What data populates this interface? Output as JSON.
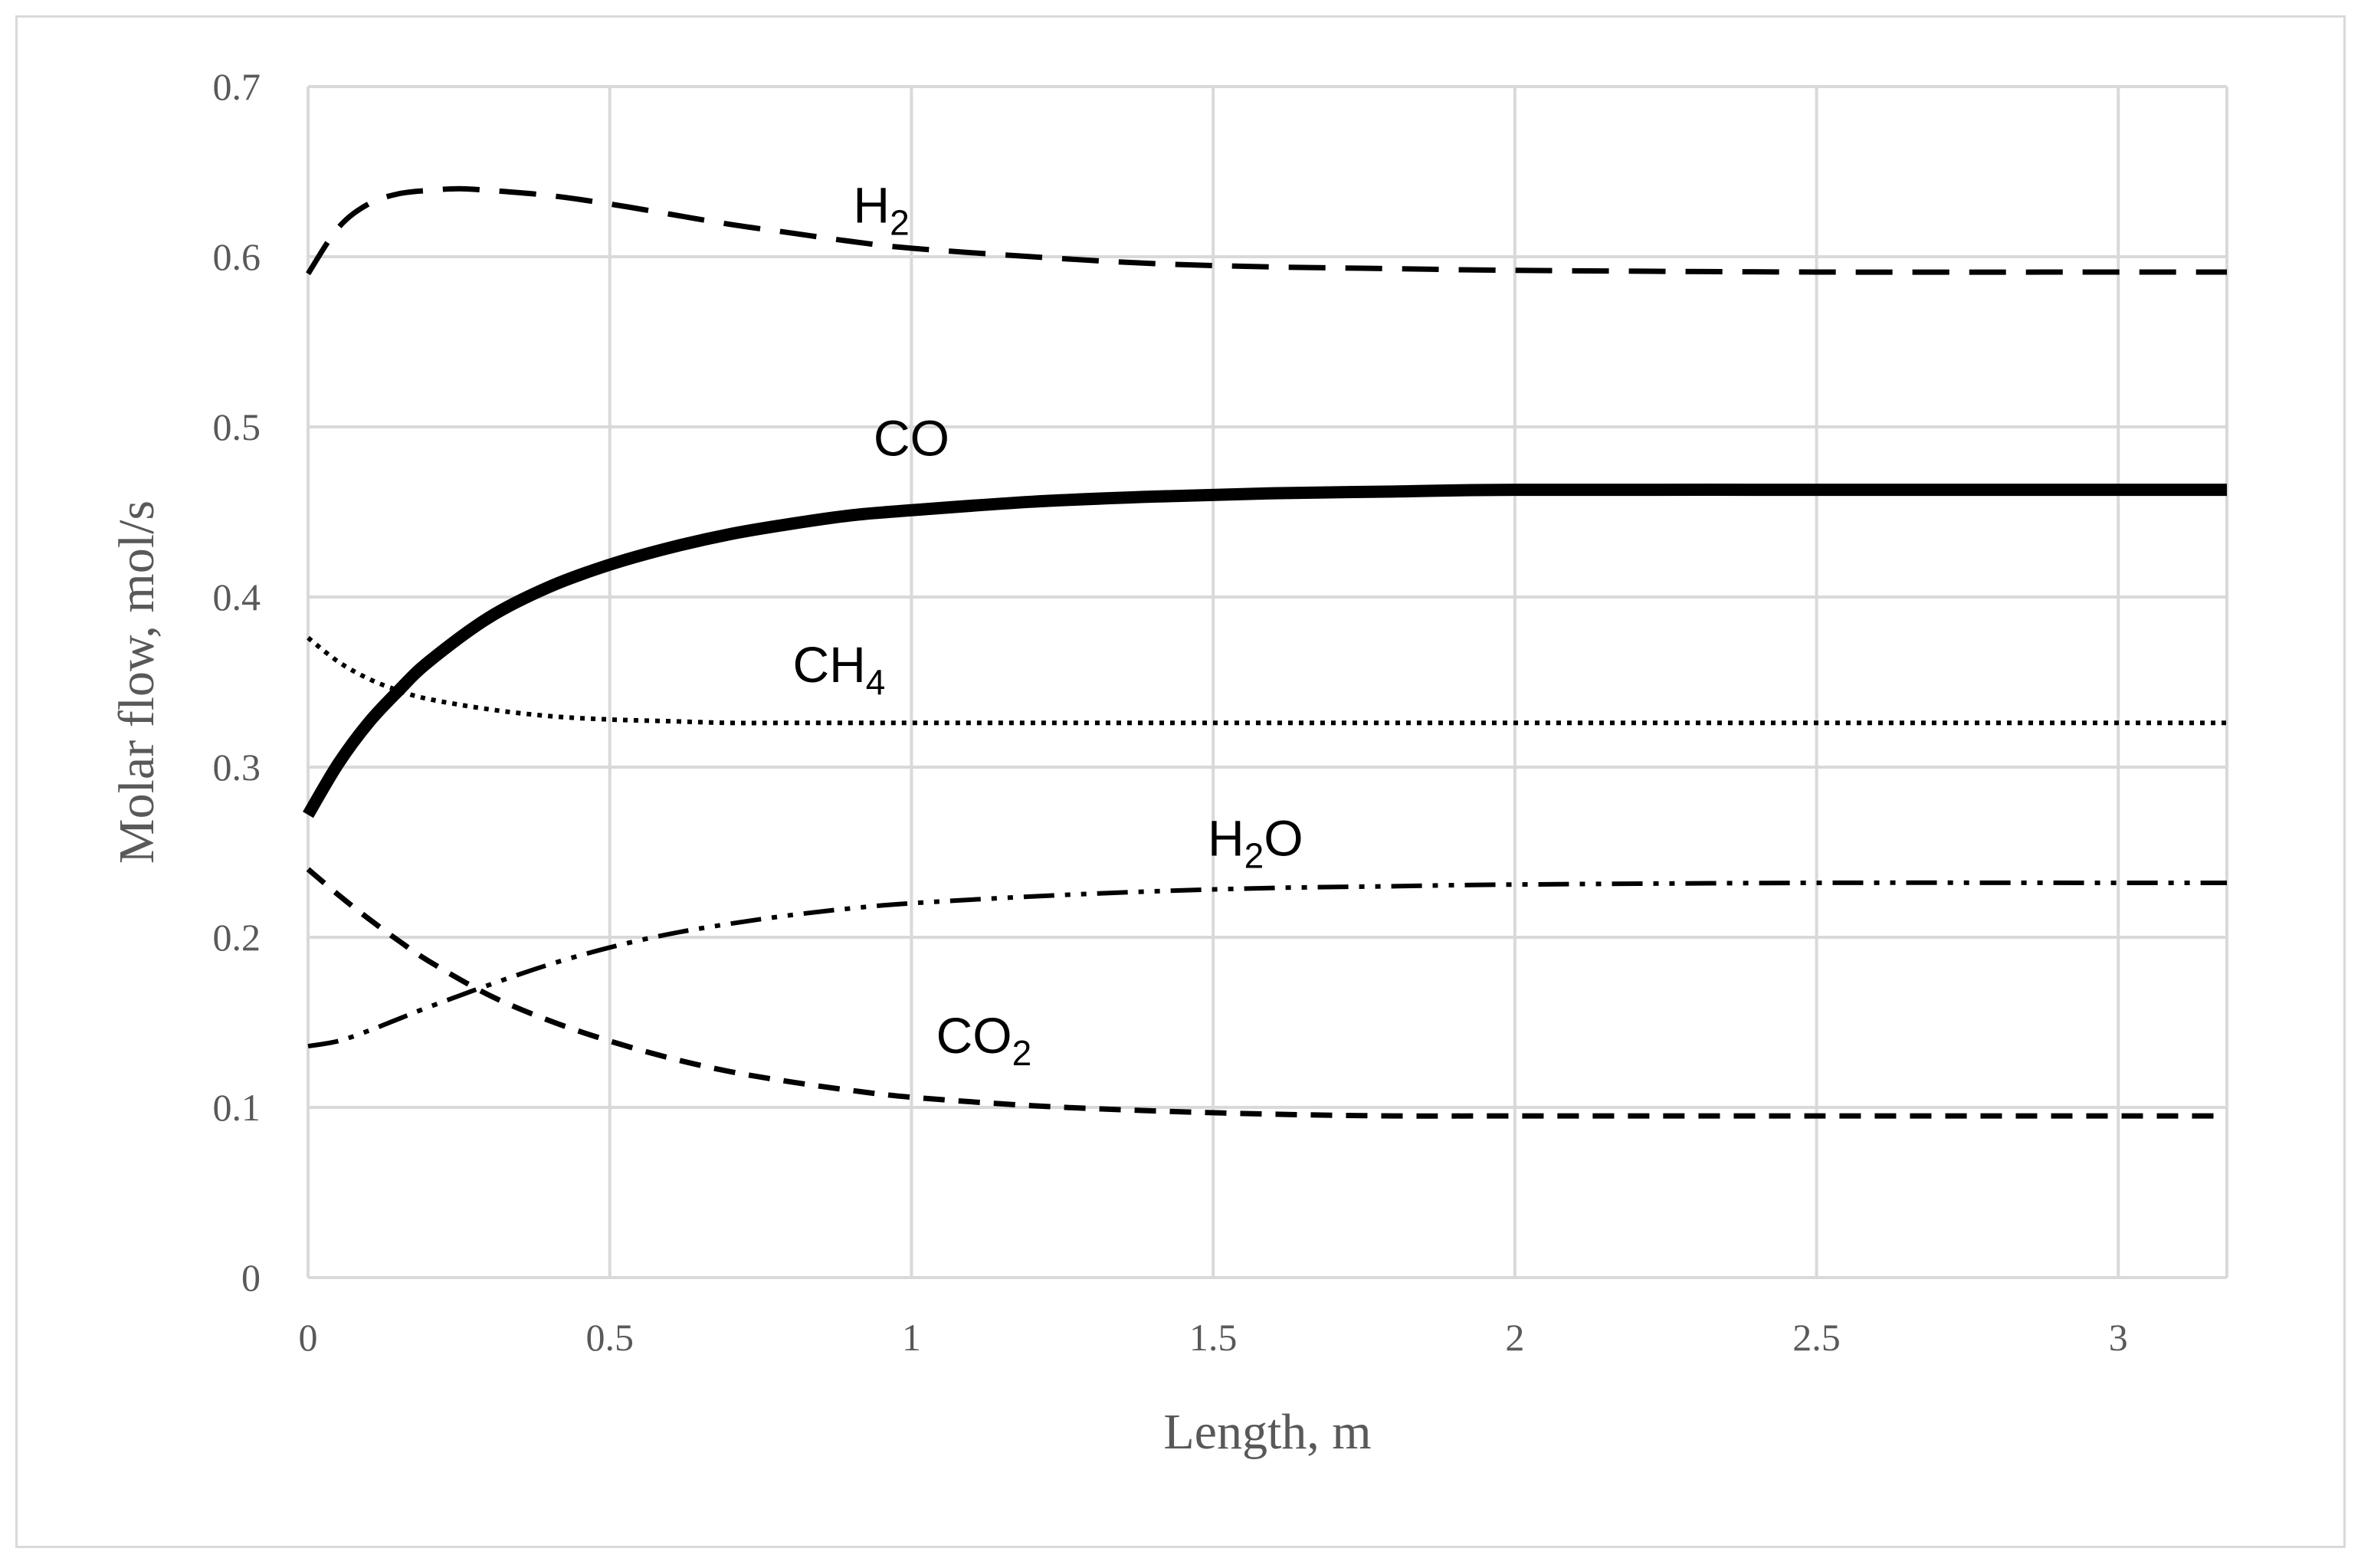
{
  "chart_data": {
    "type": "line",
    "title": "",
    "xlabel": "Length, m",
    "ylabel": "Molar flow, mol/s",
    "xlim": [
      0,
      3.18
    ],
    "ylim": [
      0,
      0.7
    ],
    "x_ticks": [
      "0",
      "0.5",
      "1",
      "1.5",
      "2",
      "2.5",
      "3"
    ],
    "x_tick_values": [
      0,
      0.5,
      1,
      1.5,
      2,
      2.5,
      3
    ],
    "y_ticks": [
      "0",
      "0.1",
      "0.2",
      "0.3",
      "0.4",
      "0.5",
      "0.6",
      "0.7"
    ],
    "y_tick_values": [
      0,
      0.1,
      0.2,
      0.3,
      0.4,
      0.5,
      0.6,
      0.7
    ],
    "grid": true,
    "legend": "none (inline labels)",
    "series": [
      {
        "name": "H2",
        "label_main": "H",
        "label_sub": "2",
        "style": "long-dash",
        "x": [
          0,
          0.05,
          0.1,
          0.15,
          0.2,
          0.25,
          0.3,
          0.4,
          0.5,
          0.6,
          0.7,
          0.8,
          0.9,
          1.0,
          1.2,
          1.4,
          1.6,
          1.8,
          2.0,
          2.5,
          3.0,
          3.18
        ],
        "y": [
          0.59,
          0.617,
          0.631,
          0.637,
          0.639,
          0.64,
          0.639,
          0.636,
          0.631,
          0.625,
          0.619,
          0.614,
          0.609,
          0.605,
          0.6,
          0.596,
          0.594,
          0.593,
          0.592,
          0.591,
          0.591,
          0.591
        ]
      },
      {
        "name": "CO",
        "label_main": "CO",
        "label_sub": "",
        "style": "solid-thick",
        "x": [
          0,
          0.05,
          0.1,
          0.15,
          0.2,
          0.3,
          0.4,
          0.5,
          0.6,
          0.7,
          0.8,
          0.9,
          1.0,
          1.2,
          1.4,
          1.6,
          1.8,
          2.0,
          2.5,
          3.0,
          3.18
        ],
        "y": [
          0.272,
          0.302,
          0.326,
          0.345,
          0.362,
          0.388,
          0.406,
          0.419,
          0.429,
          0.437,
          0.443,
          0.448,
          0.451,
          0.456,
          0.459,
          0.461,
          0.462,
          0.463,
          0.463,
          0.463,
          0.463
        ]
      },
      {
        "name": "CH4",
        "label_main": "CH",
        "label_sub": "4",
        "style": "dotted",
        "x": [
          0,
          0.05,
          0.1,
          0.15,
          0.2,
          0.3,
          0.4,
          0.5,
          0.6,
          0.7,
          0.8,
          1.0,
          1.5,
          2.0,
          2.5,
          3.0,
          3.18
        ],
        "y": [
          0.376,
          0.362,
          0.352,
          0.345,
          0.34,
          0.334,
          0.33,
          0.328,
          0.327,
          0.326,
          0.326,
          0.326,
          0.326,
          0.326,
          0.326,
          0.326,
          0.326
        ]
      },
      {
        "name": "H2O",
        "label_main": "H",
        "label_sub": "2",
        "label_tail": "O",
        "style": "dash-dot-dot",
        "x": [
          0,
          0.05,
          0.1,
          0.15,
          0.2,
          0.3,
          0.4,
          0.5,
          0.6,
          0.7,
          0.8,
          0.9,
          1.0,
          1.2,
          1.4,
          1.6,
          1.8,
          2.0,
          2.5,
          3.0,
          3.18
        ],
        "y": [
          0.136,
          0.139,
          0.145,
          0.152,
          0.159,
          0.172,
          0.184,
          0.194,
          0.202,
          0.208,
          0.213,
          0.217,
          0.22,
          0.224,
          0.227,
          0.229,
          0.23,
          0.231,
          0.232,
          0.232,
          0.232
        ]
      },
      {
        "name": "CO2",
        "label_main": "CO",
        "label_sub": "2",
        "style": "short-dash",
        "x": [
          0,
          0.05,
          0.1,
          0.15,
          0.2,
          0.3,
          0.4,
          0.5,
          0.6,
          0.7,
          0.8,
          0.9,
          1.0,
          1.2,
          1.4,
          1.6,
          1.8,
          2.0,
          2.5,
          3.0,
          3.18
        ],
        "y": [
          0.24,
          0.225,
          0.211,
          0.198,
          0.186,
          0.166,
          0.151,
          0.139,
          0.129,
          0.121,
          0.115,
          0.11,
          0.106,
          0.101,
          0.098,
          0.096,
          0.095,
          0.095,
          0.095,
          0.095,
          0.095
        ]
      }
    ],
    "label_anchors": [
      {
        "series": "H2",
        "x": 0.95,
        "y": 0.62
      },
      {
        "series": "CO",
        "x": 1.0,
        "y": 0.483
      },
      {
        "series": "CH4",
        "x": 0.88,
        "y": 0.35
      },
      {
        "series": "H2O",
        "x": 1.57,
        "y": 0.248
      },
      {
        "series": "CO2",
        "x": 1.12,
        "y": 0.132
      }
    ]
  }
}
